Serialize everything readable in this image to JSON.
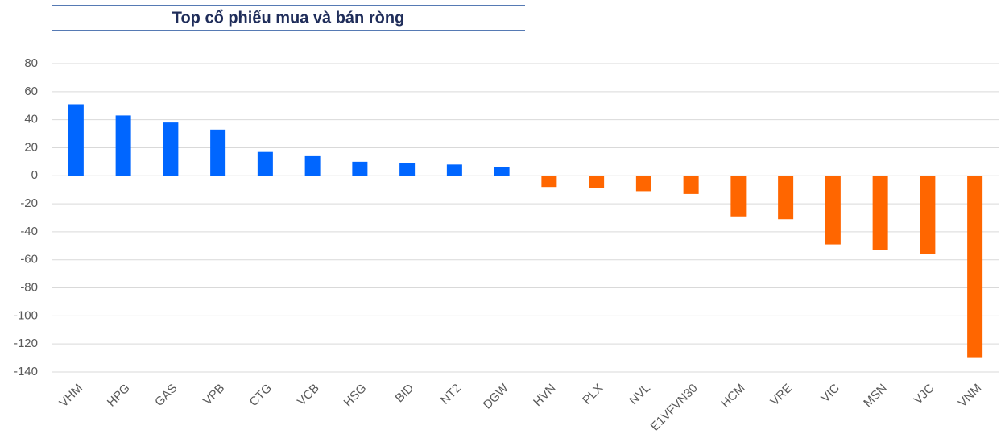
{
  "chart_data": {
    "type": "bar",
    "title": "Top cổ phiếu mua và bán ròng",
    "categories": [
      "VHM",
      "HPG",
      "GAS",
      "VPB",
      "CTG",
      "VCB",
      "HSG",
      "BID",
      "NT2",
      "DGW",
      "HVN",
      "PLX",
      "NVL",
      "E1VFVN30",
      "HCM",
      "VRE",
      "VIC",
      "MSN",
      "VJC",
      "VNM"
    ],
    "values": [
      51,
      43,
      38,
      33,
      17,
      14,
      10,
      9,
      8,
      6,
      -8,
      -9,
      -11,
      -13,
      -29,
      -31,
      -49,
      -53,
      -56,
      -130
    ],
    "colors": [
      "#0066ff",
      "#0066ff",
      "#0066ff",
      "#0066ff",
      "#0066ff",
      "#0066ff",
      "#0066ff",
      "#0066ff",
      "#0066ff",
      "#0066ff",
      "#ff6600",
      "#ff6600",
      "#ff6600",
      "#ff6600",
      "#ff6600",
      "#ff6600",
      "#ff6600",
      "#ff6600",
      "#ff6600",
      "#ff6600"
    ],
    "ylim": [
      -140,
      80
    ],
    "yticks": [
      -140,
      -120,
      -100,
      -80,
      -60,
      -40,
      -20,
      0,
      20,
      40,
      60,
      80
    ],
    "grid": true
  }
}
